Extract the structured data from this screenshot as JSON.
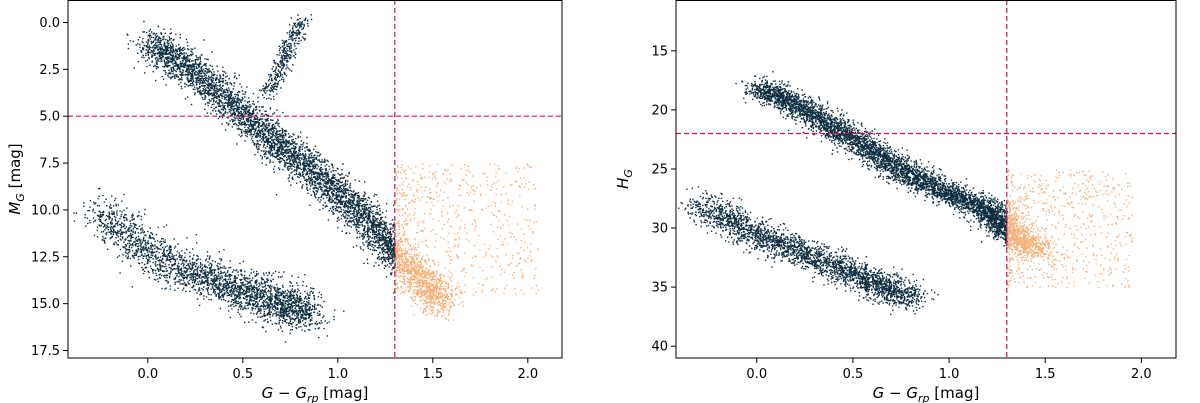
{
  "colors": {
    "main": "#0d2d40",
    "excluded": "#f4b27a",
    "cut": "#c2185b",
    "axis": "#000000"
  },
  "chart_data": [
    {
      "type": "scatter",
      "name": "left",
      "xlabel": "G − G_rp [mag]",
      "ylabel": "M_G [mag]",
      "xlabel_main": "G − G",
      "xlabel_sub": "rp",
      "xlabel_unit": " [mag]",
      "ylabel_main": "M",
      "ylabel_sub": "G",
      "ylabel_unit": " [mag]",
      "xlim": [
        -0.42,
        2.18
      ],
      "ylim": [
        17.9,
        -1.2
      ],
      "y_inverted": true,
      "xticks": [
        0.0,
        0.5,
        1.0,
        1.5,
        2.0
      ],
      "xtick_labels": [
        "0.0",
        "0.5",
        "1.0",
        "1.5",
        "2.0"
      ],
      "yticks": [
        0.0,
        2.5,
        5.0,
        7.5,
        10.0,
        12.5,
        15.0,
        17.5
      ],
      "ytick_labels": [
        "0.0",
        "2.5",
        "5.0",
        "7.5",
        "10.0",
        "12.5",
        "15.0",
        "17.5"
      ],
      "grid": false,
      "vline_x": 1.3,
      "hline_y": 5.0,
      "main_sequence": [
        [
          0.0,
          1.0
        ],
        [
          0.15,
          2.0
        ],
        [
          0.3,
          3.0
        ],
        [
          0.45,
          4.5
        ],
        [
          0.6,
          5.8
        ],
        [
          0.75,
          7.0
        ],
        [
          0.9,
          8.2
        ],
        [
          1.05,
          9.5
        ],
        [
          1.2,
          11.0
        ],
        [
          1.3,
          12.4
        ],
        [
          1.45,
          13.8
        ],
        [
          1.55,
          15.0
        ]
      ],
      "giant_branch": [
        [
          0.62,
          3.8
        ],
        [
          0.68,
          2.8
        ],
        [
          0.72,
          1.8
        ],
        [
          0.76,
          0.8
        ],
        [
          0.82,
          -0.2
        ]
      ],
      "white_dwarfs": [
        [
          -0.25,
          10.0
        ],
        [
          0.0,
          12.3
        ],
        [
          0.3,
          13.6
        ],
        [
          0.5,
          14.3
        ],
        [
          0.7,
          15.0
        ],
        [
          0.85,
          15.4
        ]
      ],
      "excluded_region": {
        "x": [
          1.3,
          2.05
        ],
        "y": [
          7.5,
          14.5
        ]
      }
    },
    {
      "type": "scatter",
      "name": "right",
      "xlabel": "G − G_rp [mag]",
      "ylabel": "H_G",
      "xlabel_main": "G − G",
      "xlabel_sub": "rp",
      "xlabel_unit": " [mag]",
      "ylabel_main": "H",
      "ylabel_sub": "G",
      "ylabel_unit": "",
      "xlim": [
        -0.42,
        2.18
      ],
      "ylim": [
        41.0,
        10.7
      ],
      "y_inverted": true,
      "xticks": [
        0.0,
        0.5,
        1.0,
        1.5,
        2.0
      ],
      "xtick_labels": [
        "0.0",
        "0.5",
        "1.0",
        "1.5",
        "2.0"
      ],
      "yticks": [
        15,
        20,
        25,
        30,
        35,
        40
      ],
      "ytick_labels": [
        "15",
        "20",
        "25",
        "30",
        "35",
        "40"
      ],
      "grid": false,
      "vline_x": 1.3,
      "hline_y": 22.0,
      "main_sequence": [
        [
          0.0,
          18.0
        ],
        [
          0.2,
          19.5
        ],
        [
          0.4,
          21.5
        ],
        [
          0.6,
          23.5
        ],
        [
          0.8,
          25.5
        ],
        [
          1.0,
          27.0
        ],
        [
          1.2,
          28.5
        ],
        [
          1.3,
          30.0
        ],
        [
          1.45,
          32.0
        ]
      ],
      "white_dwarfs": [
        [
          -0.3,
          28.0
        ],
        [
          0.0,
          30.5
        ],
        [
          0.3,
          32.5
        ],
        [
          0.6,
          34.5
        ],
        [
          0.8,
          36.0
        ]
      ],
      "excluded_region": {
        "x": [
          1.3,
          1.95
        ],
        "y": [
          25.0,
          35.0
        ]
      }
    }
  ]
}
